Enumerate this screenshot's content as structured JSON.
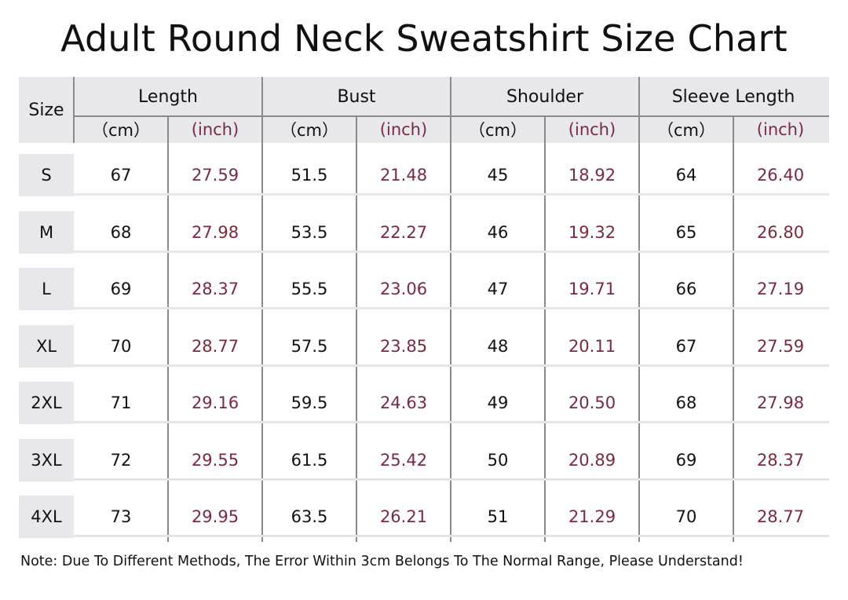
{
  "title": "Adult Round Neck Sweatshirt Size Chart",
  "header": {
    "size_label": "Size",
    "groups": [
      "Length",
      "Bust",
      "Shoulder",
      "Sleeve Length"
    ],
    "unit_cm": "（cm）",
    "unit_inch": "(inch)"
  },
  "rows": [
    {
      "size": "S",
      "values": [
        "67",
        "27.59",
        "51.5",
        "21.48",
        "45",
        "18.92",
        "64",
        "26.40"
      ]
    },
    {
      "size": "M",
      "values": [
        "68",
        "27.98",
        "53.5",
        "22.27",
        "46",
        "19.32",
        "65",
        "26.80"
      ]
    },
    {
      "size": "L",
      "values": [
        "69",
        "28.37",
        "55.5",
        "23.06",
        "47",
        "19.71",
        "66",
        "27.19"
      ]
    },
    {
      "size": "XL",
      "values": [
        "70",
        "28.77",
        "57.5",
        "23.85",
        "48",
        "20.11",
        "67",
        "27.59"
      ]
    },
    {
      "size": "2XL",
      "values": [
        "71",
        "29.16",
        "59.5",
        "24.63",
        "49",
        "20.50",
        "68",
        "27.98"
      ]
    },
    {
      "size": "3XL",
      "values": [
        "72",
        "29.55",
        "61.5",
        "25.42",
        "50",
        "20.89",
        "69",
        "28.37"
      ]
    },
    {
      "size": "4XL",
      "values": [
        "73",
        "29.95",
        "63.5",
        "26.21",
        "51",
        "21.29",
        "70",
        "28.77"
      ]
    }
  ],
  "note": "Note: Due To Different Methods, The Error Within 3cm Belongs To The Normal Range, Please Understand!",
  "colors": {
    "header_bg": "#e8e8ec",
    "inch_text": "#7a2a3e",
    "grid_line": "#8a8a8a"
  }
}
